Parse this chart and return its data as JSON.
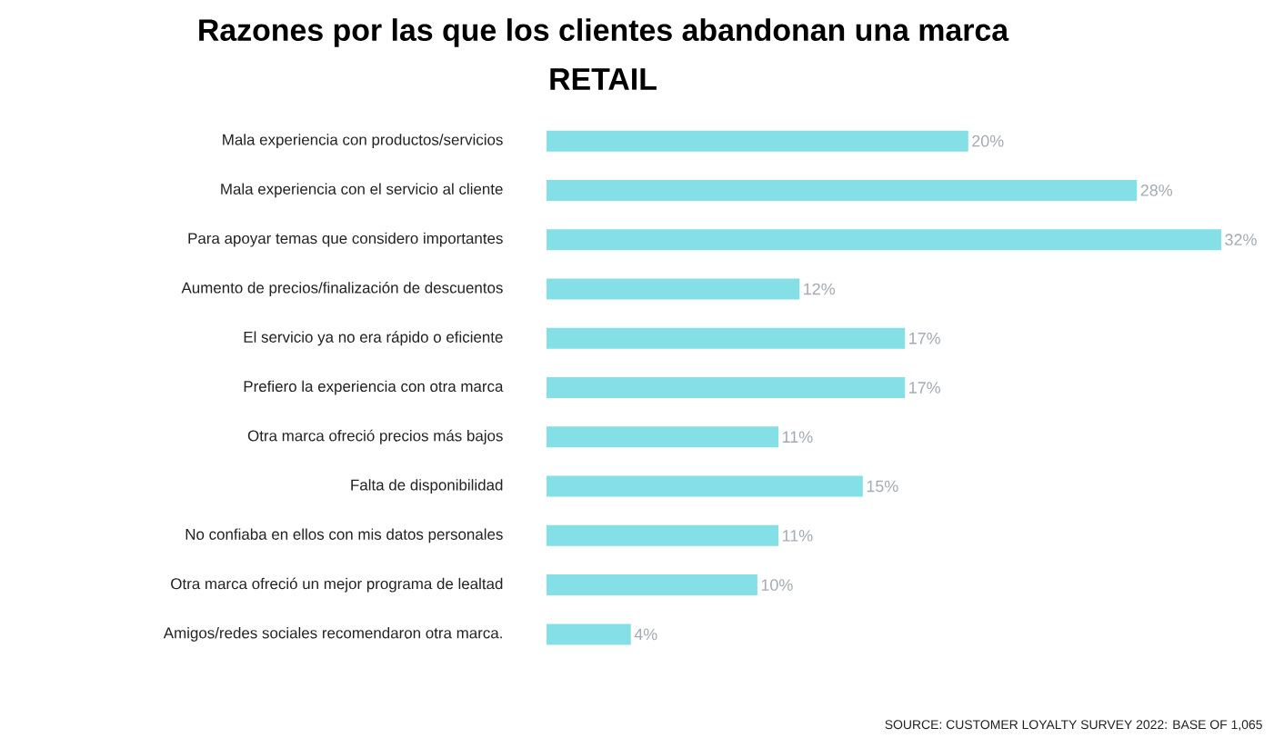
{
  "chart_data": {
    "type": "bar",
    "orientation": "horizontal",
    "title": "Razones por las que los clientes abandonan una marca",
    "subtitle": "RETAIL",
    "categories": [
      "Mala experiencia con productos/servicios",
      "Mala experiencia con el servicio al cliente",
      "Para apoyar temas que considero importantes",
      "Aumento de precios/finalización de descuentos",
      "El servicio ya no era rápido o eficiente",
      "Prefiero la experiencia con otra marca",
      "Otra marca ofreció precios más bajos",
      "Falta de disponibilidad",
      "No confiaba en ellos con mis datos personales",
      "Otra marca ofreció un mejor programa de lealtad",
      "Amigos/redes sociales recomendaron otra marca."
    ],
    "values": [
      20,
      28,
      32,
      12,
      17,
      17,
      11,
      15,
      11,
      10,
      4
    ],
    "value_labels": [
      "20%",
      "28%",
      "32%",
      "12%",
      "17%",
      "17%",
      "11%",
      "15%",
      "11%",
      "10%",
      "4%"
    ],
    "color": "#85dfe6",
    "annotations": [
      "SOURCE: CUSTOMER LOYALTY SURVEY 2022: BASE OF 1,065"
    ]
  }
}
